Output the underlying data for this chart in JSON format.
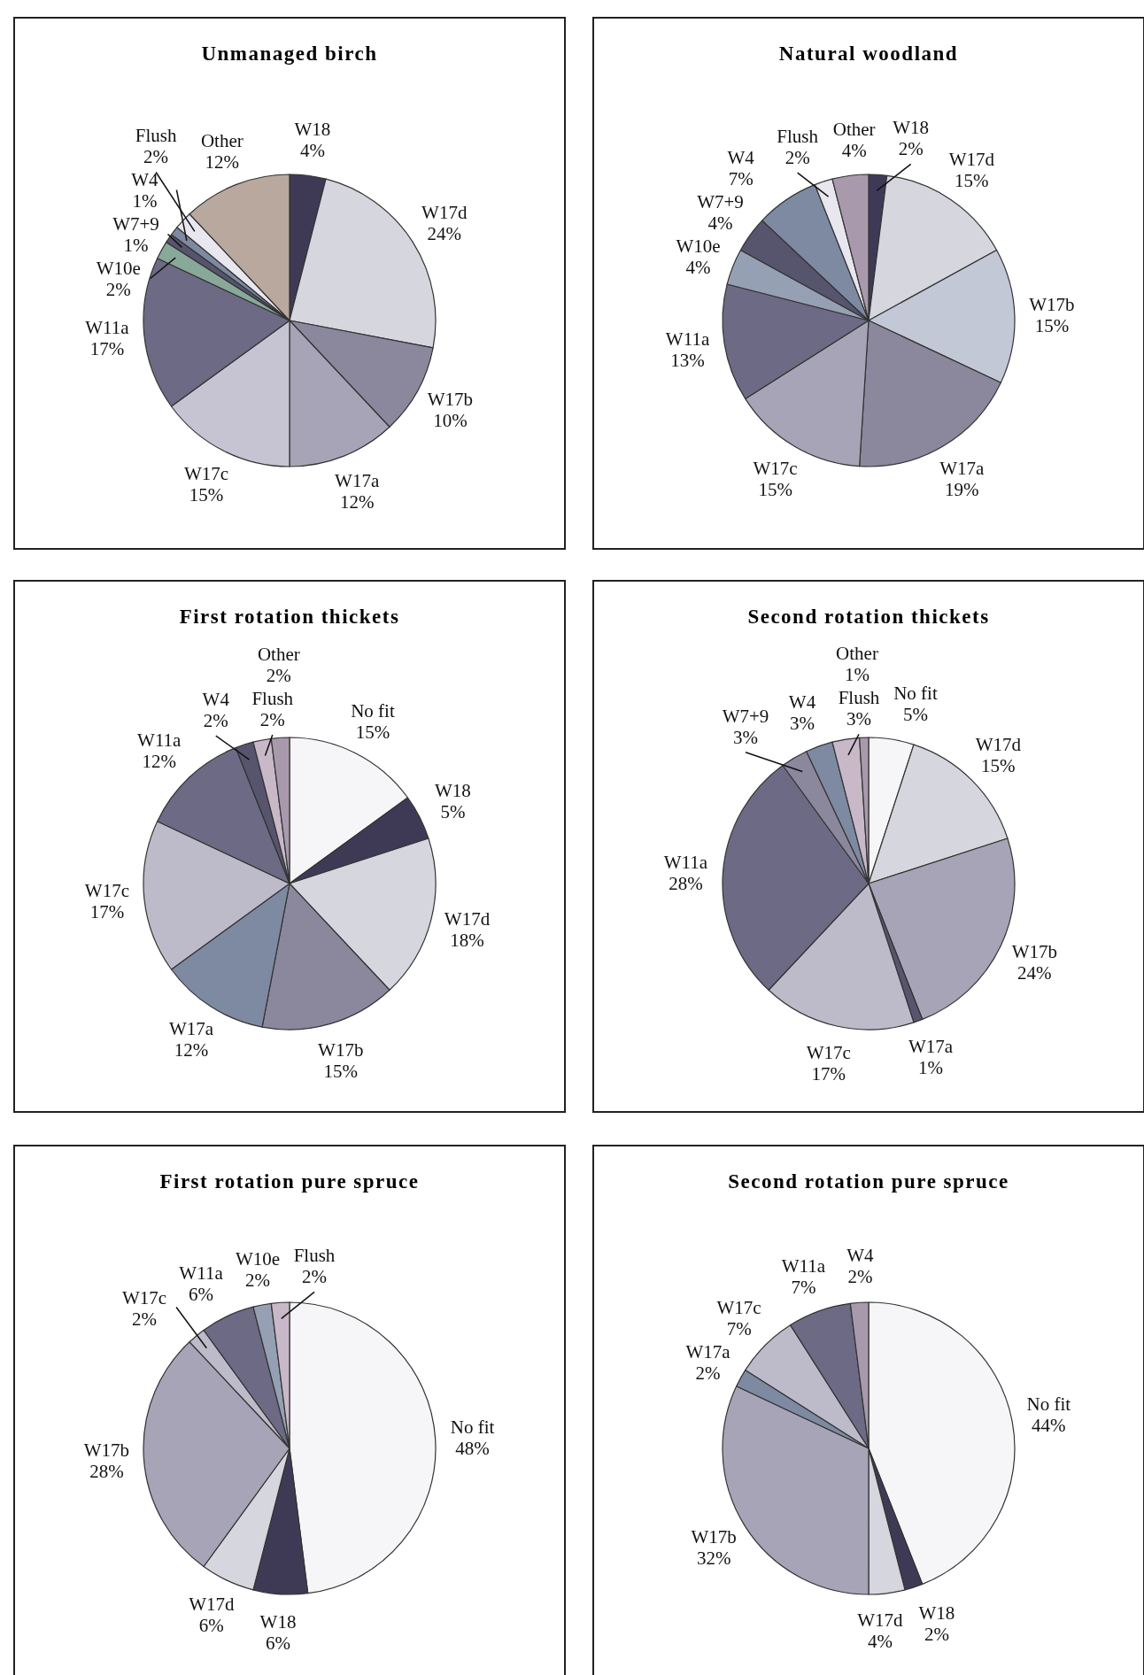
{
  "chart_data": [
    {
      "type": "pie",
      "title": "Unmanaged birch",
      "categories": [
        "W18",
        "W17d",
        "W17b",
        "W17a",
        "W17c",
        "W11a",
        "W10e",
        "W7+9",
        "W4",
        "Flush",
        "Other"
      ],
      "values": [
        4,
        24,
        10,
        12,
        15,
        17,
        2,
        1,
        1,
        2,
        12
      ],
      "value_labels": [
        "4%",
        "24%",
        "10%",
        "12%",
        "15%",
        "17%",
        "2%",
        "1%",
        "1%",
        "2%",
        "12%"
      ],
      "colors": [
        "#3e3a56",
        "#d6d6de",
        "#8b889d",
        "#a6a4b6",
        "#c6c4d2",
        "#6c6a84",
        "#88a89a",
        "#57546e",
        "#7e8aa2",
        "#e8e6ee",
        "#b8a89e"
      ]
    },
    {
      "type": "pie",
      "title": "Natural woodland",
      "categories": [
        "W18",
        "W17d",
        "W17b",
        "W17a",
        "W17c",
        "W11a",
        "W10e",
        "W7+9",
        "W4",
        "Flush",
        "Other"
      ],
      "values": [
        2,
        15,
        15,
        19,
        15,
        13,
        4,
        4,
        7,
        2,
        4
      ],
      "value_labels": [
        "2%",
        "15%",
        "15%",
        "19%",
        "15%",
        "13%",
        "4%",
        "4%",
        "7%",
        "2%",
        "4%"
      ],
      "colors": [
        "#3e3a56",
        "#d6d6de",
        "#c2c8d6",
        "#8b889d",
        "#a6a4b6",
        "#6c6a84",
        "#96a0b4",
        "#57546e",
        "#7e8aa2",
        "#e8e6ee",
        "#a89aac"
      ]
    },
    {
      "type": "pie",
      "title": "First rotation thickets",
      "categories": [
        "No fit",
        "W18",
        "W17d",
        "W17b",
        "W17a",
        "W17c",
        "W11a",
        "W4",
        "Flush",
        "Other"
      ],
      "values": [
        15,
        5,
        18,
        15,
        12,
        17,
        12,
        2,
        2,
        2
      ],
      "value_labels": [
        "15%",
        "5%",
        "18%",
        "15%",
        "12%",
        "17%",
        "12%",
        "2%",
        "2%",
        "2%"
      ],
      "colors": [
        "#f6f6f8",
        "#3e3a56",
        "#d6d6de",
        "#8b889d",
        "#7e8aa2",
        "#bdbbc9",
        "#6c6a84",
        "#57546e",
        "#c8b8c8",
        "#a89aac"
      ]
    },
    {
      "type": "pie",
      "title": "Second rotation thickets",
      "categories": [
        "No fit",
        "W17d",
        "W17b",
        "W17a",
        "W17c",
        "W11a",
        "W7+9",
        "W4",
        "Flush",
        "Other"
      ],
      "values": [
        5,
        15,
        24,
        1,
        17,
        28,
        3,
        3,
        3,
        1
      ],
      "value_labels": [
        "5%",
        "15%",
        "24%",
        "1%",
        "17%",
        "28%",
        "3%",
        "3%",
        "3%",
        "1%"
      ],
      "colors": [
        "#f6f6f8",
        "#d6d6de",
        "#a6a4b6",
        "#57546e",
        "#bdbbc9",
        "#6c6a84",
        "#8b889d",
        "#7e8aa2",
        "#c8b8c8",
        "#a89aac"
      ]
    },
    {
      "type": "pie",
      "title": "First rotation pure spruce",
      "categories": [
        "No fit",
        "W18",
        "W17d",
        "W17b",
        "W17c",
        "W11a",
        "W10e",
        "Flush"
      ],
      "values": [
        48,
        6,
        6,
        28,
        2,
        6,
        2,
        2
      ],
      "value_labels": [
        "48%",
        "6%",
        "6%",
        "28%",
        "2%",
        "6%",
        "2%",
        "2%"
      ],
      "colors": [
        "#f6f6f8",
        "#3e3a56",
        "#d6d6de",
        "#a6a4b6",
        "#bdbbc9",
        "#6c6a84",
        "#96a0b4",
        "#c8b8c8"
      ]
    },
    {
      "type": "pie",
      "title": "Second rotation pure spruce",
      "categories": [
        "No fit",
        "W18",
        "W17d",
        "W17b",
        "W17a",
        "W17c",
        "W11a",
        "W4"
      ],
      "values": [
        44,
        2,
        4,
        32,
        2,
        7,
        7,
        2
      ],
      "value_labels": [
        "44%",
        "2%",
        "4%",
        "32%",
        "2%",
        "7%",
        "7%",
        "2%"
      ],
      "colors": [
        "#f6f6f8",
        "#3e3a56",
        "#d6d6de",
        "#a6a4b6",
        "#7e8aa2",
        "#bdbbc9",
        "#6c6a84",
        "#a89aac"
      ]
    }
  ]
}
